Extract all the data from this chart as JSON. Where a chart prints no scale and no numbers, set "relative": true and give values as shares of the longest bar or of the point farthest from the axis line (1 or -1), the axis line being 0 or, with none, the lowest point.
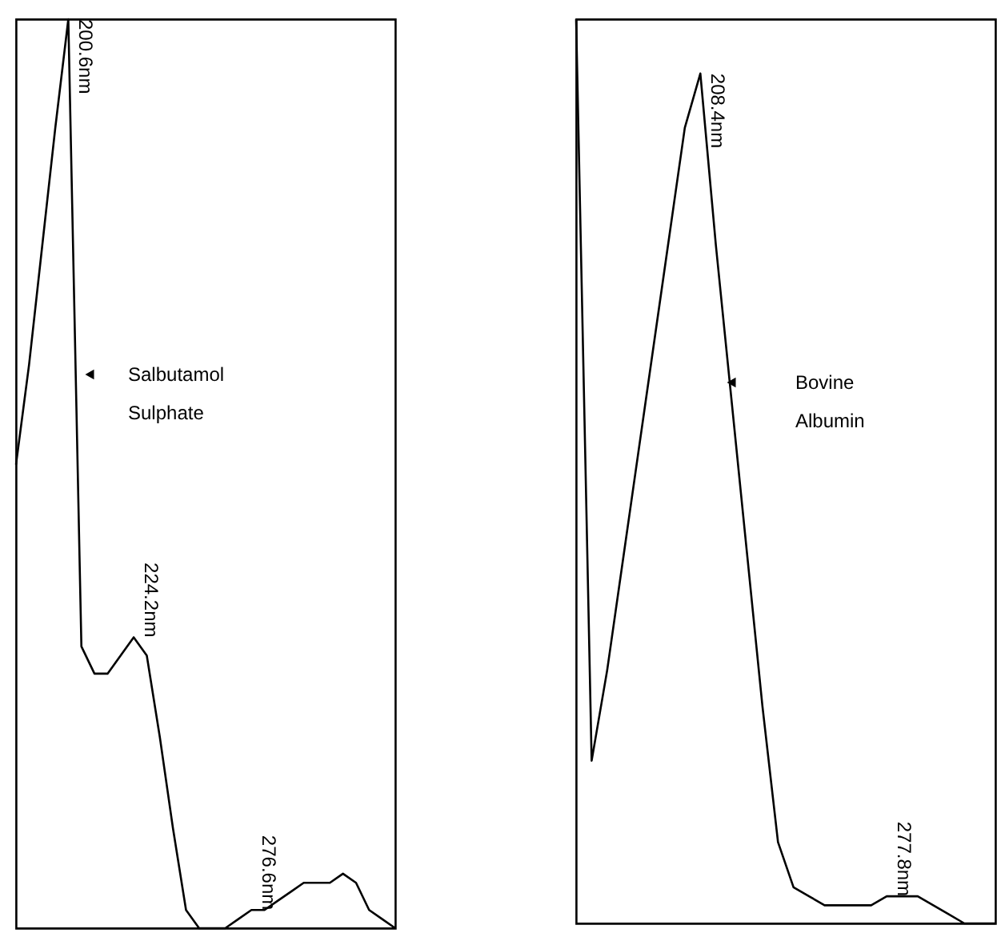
{
  "chart_data": [
    {
      "type": "line",
      "relative": true,
      "tick_labels": false,
      "marker": "none",
      "line_style": "solid",
      "categories": [
        null,
        null,
        null,
        null,
        null,
        null,
        null,
        null,
        null,
        null,
        null,
        null,
        null,
        null,
        null,
        null,
        null,
        null,
        null,
        null,
        null,
        null,
        null,
        null,
        null,
        null,
        null,
        null,
        null,
        null
      ],
      "series": [
        {
          "color": "#000000",
          "values": [
            0.51,
            0.62,
            0.75,
            0.88,
            1.0,
            0.31,
            0.28,
            0.28,
            0.3,
            0.32,
            0.3,
            0.21,
            0.11,
            0.02,
            0,
            0,
            0,
            0.01,
            0.02,
            0.02,
            0.03,
            0.04,
            0.05,
            0.05,
            0.05,
            0.06,
            0.05,
            0.02,
            0.01,
            0
          ]
        }
      ],
      "annotations": [
        {
          "text": "200.6nm"
        },
        {
          "text": "224.2nm"
        },
        {
          "text": "276.6nm"
        },
        "Salbutamol Sulphate"
      ]
    },
    {
      "type": "line",
      "relative": true,
      "tick_labels": false,
      "marker": "none",
      "line_style": "solid",
      "categories": [
        null,
        null,
        null,
        null,
        null,
        null,
        null,
        null,
        null,
        null,
        null,
        null,
        null,
        null,
        null,
        null,
        null,
        null,
        null,
        null,
        null,
        null,
        null,
        null,
        null,
        null,
        null,
        null
      ],
      "series": [
        {
          "color": "#000000",
          "values": [
            1.0,
            0.18,
            0.28,
            0.4,
            0.52,
            0.64,
            0.76,
            0.88,
            0.94,
            0.75,
            0.58,
            0.41,
            0.24,
            0.09,
            0.04,
            0.03,
            0.02,
            0.02,
            0.02,
            0.02,
            0.03,
            0.03,
            0.03,
            0.02,
            0.01,
            0,
            0,
            0
          ]
        }
      ],
      "annotations": [
        {
          "text": "208.4nm"
        },
        {
          "text": "277.8nm"
        },
        "Bovine Albumin"
      ]
    }
  ]
}
